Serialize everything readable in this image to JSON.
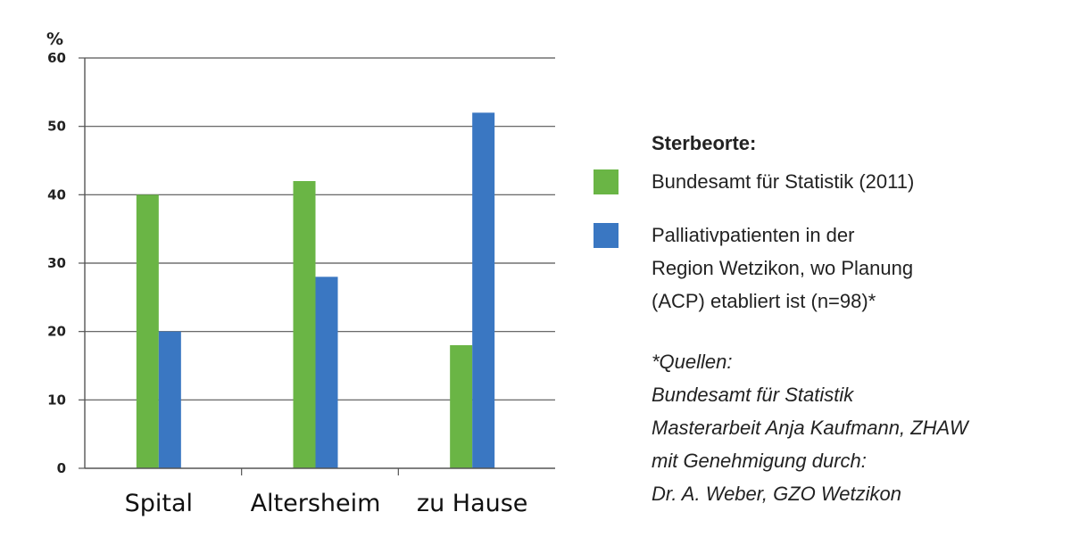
{
  "chart_data": {
    "type": "bar",
    "categories": [
      "Spital",
      "Altersheim",
      "zu Hause"
    ],
    "series": [
      {
        "name": "Bundesamt für Statistik (2011)",
        "color": "#6ab545",
        "values": [
          40,
          42,
          18
        ]
      },
      {
        "name": "Palliativpatienten in der Region Wetzikon, wo Planung (ACP) etabliert ist (n=98)*",
        "color": "#3a77c2",
        "values": [
          20,
          28,
          52
        ]
      }
    ],
    "yunit": "%",
    "ylim": [
      0,
      60
    ],
    "yticks": [
      "0",
      "10",
      "20",
      "30",
      "40",
      "50",
      "60"
    ],
    "grid": true,
    "legend_position": "right"
  },
  "legend": {
    "title": "Sterbeorte:",
    "items": [
      {
        "lines": [
          "Bundesamt für Statistik (2011)"
        ]
      },
      {
        "lines": [
          "Palliativpatienten in der",
          "Region Wetzikon, wo Planung",
          "(ACP) etabliert ist (n=98)*"
        ]
      }
    ]
  },
  "sources": {
    "lines": [
      "*Quellen:",
      "Bundesamt für Statistik",
      "Masterarbeit Anja Kaufmann, ZHAW",
      "mit Genehmigung durch:",
      "Dr. A. Weber, GZO Wetzikon"
    ]
  }
}
